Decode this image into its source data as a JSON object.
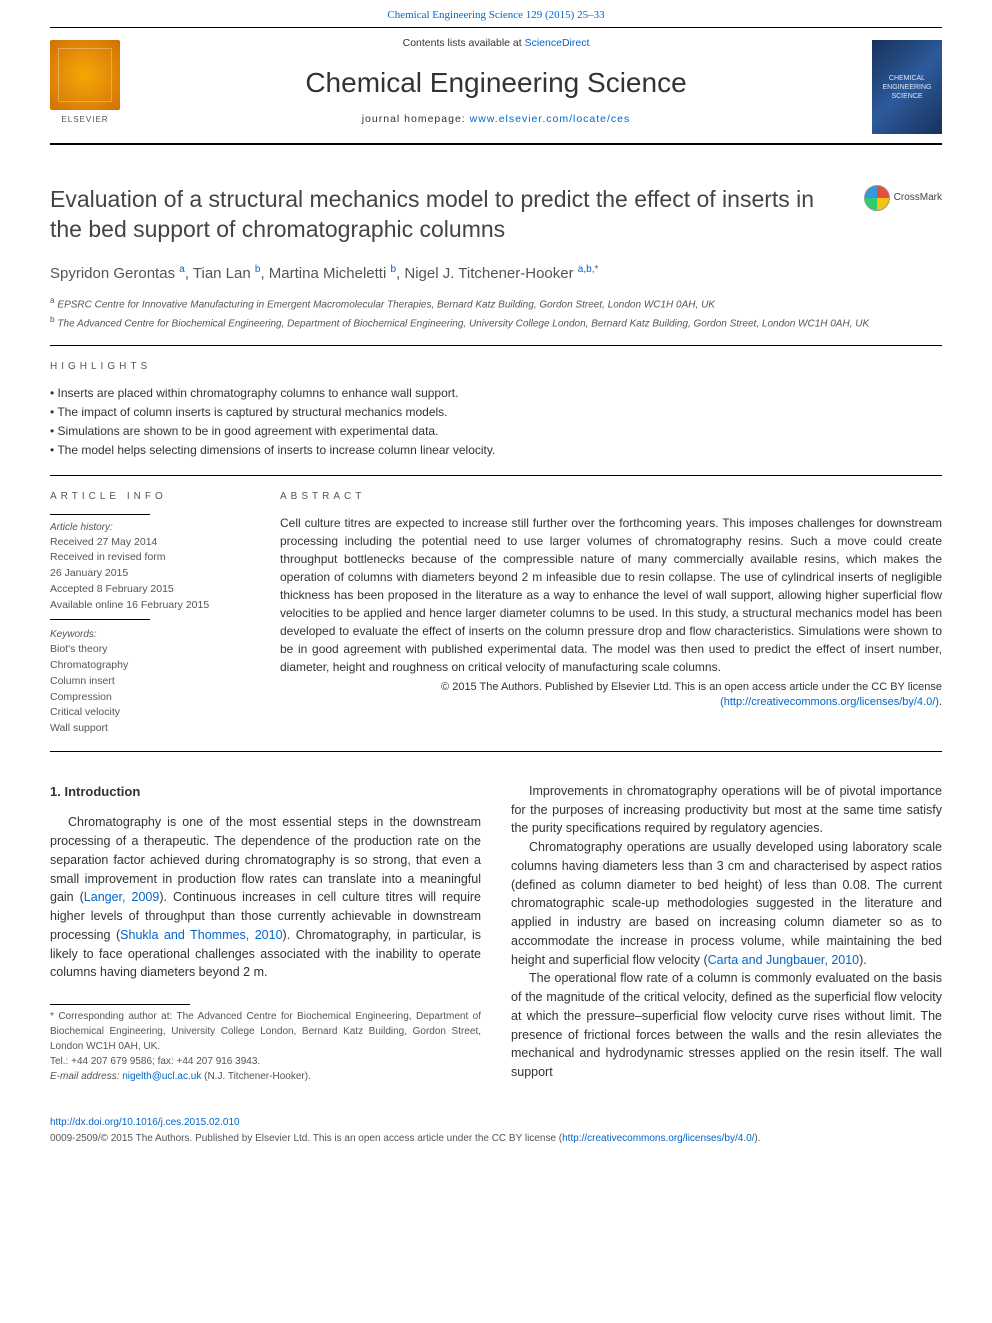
{
  "top_ref": "Chemical Engineering Science 129 (2015) 25–33",
  "header": {
    "contents_prefix": "Contents lists available at ",
    "contents_link": "ScienceDirect",
    "journal": "Chemical Engineering Science",
    "homepage_prefix": "journal homepage: ",
    "homepage_link": "www.elsevier.com/locate/ces",
    "publisher_logo_label": "ELSEVIER",
    "cover_lines": [
      "CHEMICAL",
      "ENGINEERING",
      "SCIENCE"
    ]
  },
  "crossmark_label": "CrossMark",
  "title": "Evaluation of a structural mechanics model to predict the effect of inserts in the bed support of chromatographic columns",
  "authors_html": "Spyridon Gerontas <sup><a>a</a></sup>, Tian Lan <sup><a>b</a></sup>, Martina Micheletti <sup><a>b</a></sup>, Nigel J. Titchener-Hooker <sup><a>a</a>,<a>b</a>,*</sup>",
  "affiliations": [
    "a EPSRC Centre for Innovative Manufacturing in Emergent Macromolecular Therapies, Bernard Katz Building, Gordon Street, London WC1H 0AH, UK",
    "b The Advanced Centre for Biochemical Engineering, Department of Biochemical Engineering, University College London, Bernard Katz Building, Gordon Street, London WC1H 0AH, UK"
  ],
  "highlights_label": "HIGHLIGHTS",
  "highlights": [
    "Inserts are placed within chromatography columns to enhance wall support.",
    "The impact of column inserts is captured by structural mechanics models.",
    "Simulations are shown to be in good agreement with experimental data.",
    "The model helps selecting dimensions of inserts to increase column linear velocity."
  ],
  "article_info_label": "ARTICLE INFO",
  "article_history_label": "Article history:",
  "article_history": [
    "Received 27 May 2014",
    "Received in revised form",
    "26 January 2015",
    "Accepted 8 February 2015",
    "Available online 16 February 2015"
  ],
  "keywords_label": "Keywords:",
  "keywords": [
    "Biot's theory",
    "Chromatography",
    "Column insert",
    "Compression",
    "Critical velocity",
    "Wall support"
  ],
  "abstract_label": "ABSTRACT",
  "abstract": "Cell culture titres are expected to increase still further over the forthcoming years. This imposes challenges for downstream processing including the potential need to use larger volumes of chromatography resins. Such a move could create throughput bottlenecks because of the compressible nature of many commercially available resins, which makes the operation of columns with diameters beyond 2 m infeasible due to resin collapse. The use of cylindrical inserts of negligible thickness has been proposed in the literature as a way to enhance the level of wall support, allowing higher superficial flow velocities to be applied and hence larger diameter columns to be used. In this study, a structural mechanics model has been developed to evaluate the effect of inserts on the column pressure drop and flow characteristics. Simulations were shown to be in good agreement with published experimental data. The model was then used to predict the effect of insert number, diameter, height and roughness on critical velocity of manufacturing scale columns.",
  "license_prefix": "© 2015 The Authors. Published by Elsevier Ltd. This is an open access article under the CC BY license",
  "license_link_text": "(http://creativecommons.org/licenses/by/4.0/)",
  "section1_heading": "1.  Introduction",
  "body_left": [
    "Chromatography is one of the most essential steps in the downstream processing of a therapeutic. The dependence of the production rate on the separation factor achieved during chromatography is so strong, that even a small improvement in production flow rates can translate into a meaningful gain (<a>Langer, 2009</a>). Continuous increases in cell culture titres will require higher levels of throughput than those currently achievable in downstream processing (<a>Shukla and Thommes, 2010</a>). Chromatography, in particular, is likely to face operational challenges associated with the inability to operate columns having diameters beyond 2 m."
  ],
  "body_right": [
    "Improvements in chromatography operations will be of pivotal importance for the purposes of increasing productivity but most at the same time satisfy the purity specifications required by regulatory agencies.",
    "Chromatography operations are usually developed using laboratory scale columns having diameters less than 3 cm and characterised by aspect ratios (defined as column diameter to bed height) of less than 0.08. The current chromatographic scale-up methodologies suggested in the literature and applied in industry are based on increasing column diameter so as to accommodate the increase in process volume, while maintaining the bed height and superficial flow velocity (<a>Carta and Jungbauer, 2010</a>).",
    "The operational flow rate of a column is commonly evaluated on the basis of the magnitude of the critical velocity, defined as the superficial flow velocity at which the pressure–superficial flow velocity curve rises without limit. The presence of frictional forces between the walls and the resin alleviates the mechanical and hydrodynamic stresses applied on the resin itself. The wall support"
  ],
  "footnote": {
    "corresponding": "* Corresponding author at: The Advanced Centre for Biochemical Engineering, Department of Biochemical Engineering, University College London, Bernard Katz Building, Gordon Street, London WC1H 0AH, UK.",
    "tel": "Tel.: +44 207 679 9586; fax: +44 207 916 3943.",
    "email_label": "E-mail address: ",
    "email": "nigelth@ucl.ac.uk",
    "email_suffix": " (N.J. Titchener-Hooker)."
  },
  "footer": {
    "doi": "http://dx.doi.org/10.1016/j.ces.2015.02.010",
    "copyright": "0009-2509/© 2015 The Authors. Published by Elsevier Ltd. This is an open access article under the CC BY license (",
    "copyright_link": "http://creativecommons.org/licenses/by/4.0/",
    "copyright_suffix": ")."
  },
  "colors": {
    "link": "#0066cc",
    "text": "#333333",
    "muted": "#555555",
    "elsevier_orange": "#e8920a",
    "cover_blue": "#2c5a9c"
  }
}
